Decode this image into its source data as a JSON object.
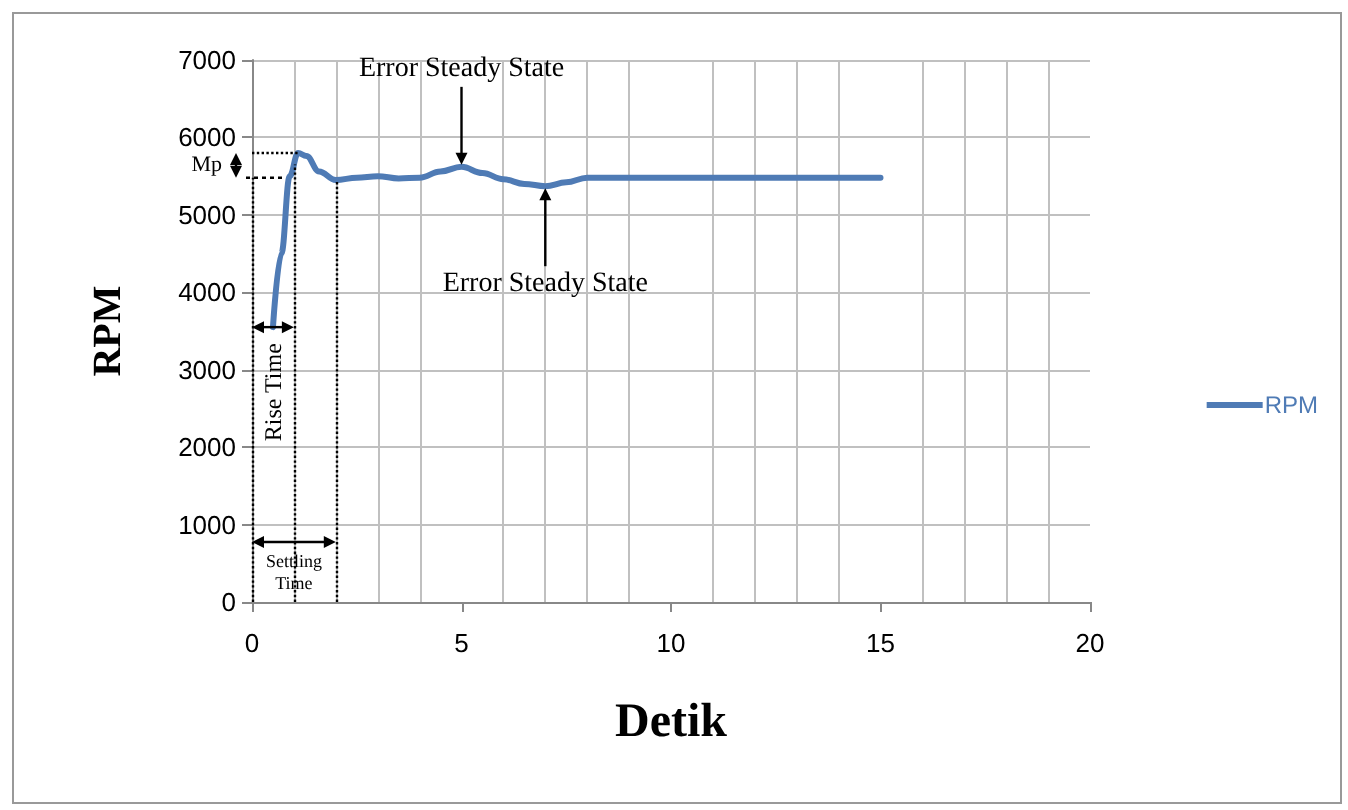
{
  "chart_data": {
    "type": "line",
    "xlabel": "Detik",
    "ylabel": "RPM",
    "x": [
      0.5,
      0.7,
      0.9,
      1.1,
      1.3,
      1.6,
      2,
      2.5,
      3,
      3.5,
      4,
      4.5,
      5,
      5.5,
      6,
      6.5,
      7,
      7.5,
      8,
      9,
      10,
      11,
      12,
      13,
      14,
      15
    ],
    "series": [
      {
        "name": "RPM",
        "color": "#4f7bb5",
        "values": [
          3550,
          4500,
          5500,
          5800,
          5760,
          5560,
          5450,
          5480,
          5500,
          5470,
          5480,
          5560,
          5620,
          5540,
          5460,
          5400,
          5370,
          5420,
          5480,
          5480,
          5480,
          5480,
          5480,
          5480,
          5480,
          5480
        ]
      }
    ],
    "xlim": [
      0,
      20
    ],
    "xticks": [
      0,
      5,
      10,
      15,
      20
    ],
    "ylim": [
      0,
      7000
    ],
    "yticks": [
      0,
      1000,
      2000,
      3000,
      4000,
      5000,
      6000,
      7000
    ],
    "grid": true,
    "legend": "right",
    "line_style": "solid",
    "marker": "none",
    "ref_lines": [
      {
        "axis": "y",
        "value": 5800,
        "label": "Mp",
        "line_style": "dotted",
        "color": "#000000"
      },
      {
        "axis": "x",
        "value": 0,
        "line_style": "dotted",
        "color": "#000000"
      },
      {
        "axis": "x",
        "value": 1,
        "label": "Rise Time",
        "line_style": "dotted",
        "color": "#000000"
      },
      {
        "axis": "x",
        "value": 2,
        "label": "Settling Time",
        "line_style": "dotted",
        "color": "#000000"
      }
    ],
    "annotations": [
      {
        "text": "Error Steady State",
        "x": 5,
        "y": 5620
      },
      {
        "text": "Error Steady State",
        "x": 7,
        "y": 5370
      }
    ]
  }
}
